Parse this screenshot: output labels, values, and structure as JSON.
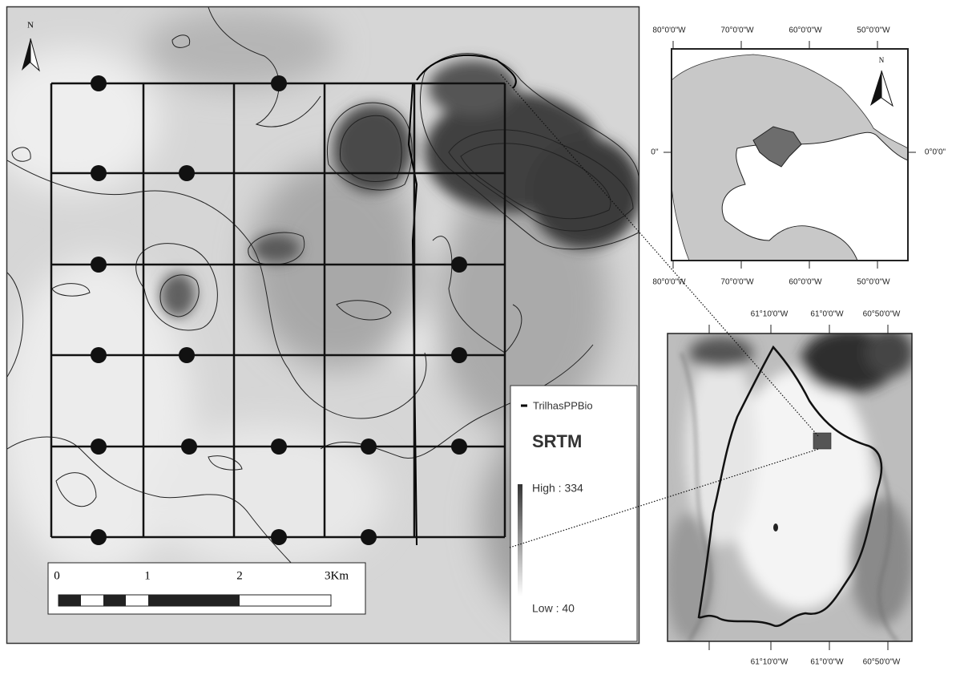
{
  "main_map": {
    "north": "N",
    "scale_labels": [
      "0",
      "1",
      "2",
      "3Km"
    ],
    "legend": {
      "trail_label": "TrilhasPPBio",
      "raster_title": "SRTM",
      "high": "High : 334",
      "low": "Low : 40"
    }
  },
  "inset_region": {
    "north": "N",
    "top_labels": [
      "80°0'0\"W",
      "70°0'0\"W",
      "60°0'0\"W",
      "50°0'0\"W"
    ],
    "bottom_labels": [
      "80°0'0\"W",
      "70°0'0\"W",
      "60°0'0\"W",
      "50°0'0\"W"
    ],
    "left_label": "0''",
    "right_label": "0°0'0\""
  },
  "inset_reserve": {
    "top_labels": [
      "61°10'0\"W",
      "61°0'0\"W",
      "60°50'0\"W"
    ],
    "bottom_labels": [
      "61°10'0\"W",
      "61°0'0\"W",
      "60°50'0\"W"
    ]
  }
}
